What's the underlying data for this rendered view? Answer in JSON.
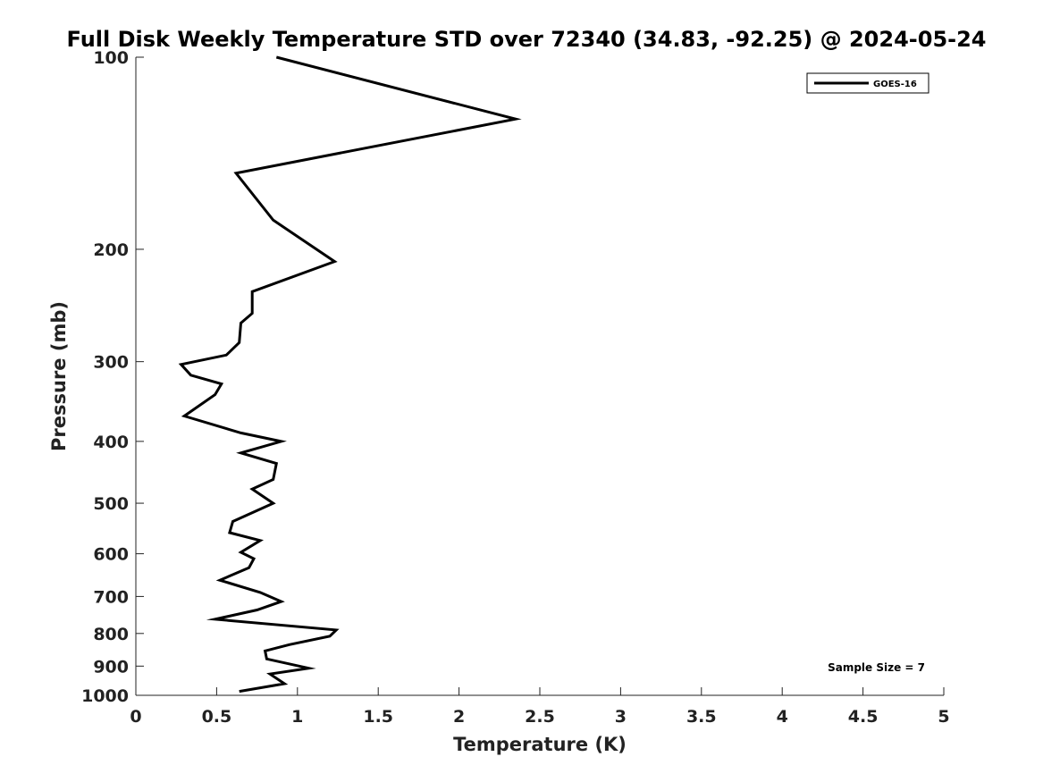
{
  "chart_data": {
    "type": "line",
    "title": "Full Disk Weekly Temperature STD over 72340 (34.83, -92.25) @ 2024-05-24",
    "xlabel": "Temperature (K)",
    "ylabel": "Pressure (mb)",
    "xlim": [
      0,
      5
    ],
    "ylim": [
      100,
      1000
    ],
    "y_scale": "log",
    "y_inverted": true,
    "xticks": [
      0,
      0.5,
      1,
      1.5,
      2,
      2.5,
      3,
      3.5,
      4,
      4.5,
      5
    ],
    "yticks": [
      100,
      200,
      300,
      400,
      500,
      600,
      700,
      800,
      900,
      1000
    ],
    "grid": false,
    "legend_position": "top-right",
    "annotation": "Sample Size = 7",
    "series": [
      {
        "name": "GOES-16",
        "color": "#000000",
        "points": [
          [
            0.87,
            100
          ],
          [
            2.35,
            125
          ],
          [
            0.62,
            152
          ],
          [
            0.85,
            180
          ],
          [
            1.23,
            209
          ],
          [
            0.72,
            233
          ],
          [
            0.72,
            252
          ],
          [
            0.65,
            261
          ],
          [
            0.64,
            280
          ],
          [
            0.56,
            293
          ],
          [
            0.28,
            303
          ],
          [
            0.34,
            315
          ],
          [
            0.53,
            325
          ],
          [
            0.49,
            338
          ],
          [
            0.3,
            365
          ],
          [
            0.65,
            388
          ],
          [
            0.9,
            400
          ],
          [
            0.65,
            417
          ],
          [
            0.87,
            433
          ],
          [
            0.85,
            459
          ],
          [
            0.72,
            475
          ],
          [
            0.85,
            500
          ],
          [
            0.6,
            534
          ],
          [
            0.58,
            556
          ],
          [
            0.77,
            572
          ],
          [
            0.65,
            597
          ],
          [
            0.73,
            611
          ],
          [
            0.7,
            631
          ],
          [
            0.52,
            660
          ],
          [
            0.77,
            690
          ],
          [
            0.9,
            713
          ],
          [
            0.75,
            735
          ],
          [
            0.49,
            760
          ],
          [
            1.24,
            790
          ],
          [
            1.2,
            808
          ],
          [
            0.95,
            833
          ],
          [
            0.8,
            852
          ],
          [
            0.81,
            877
          ],
          [
            1.07,
            907
          ],
          [
            0.83,
            926
          ],
          [
            0.92,
            959
          ],
          [
            0.64,
            986
          ]
        ]
      }
    ]
  }
}
